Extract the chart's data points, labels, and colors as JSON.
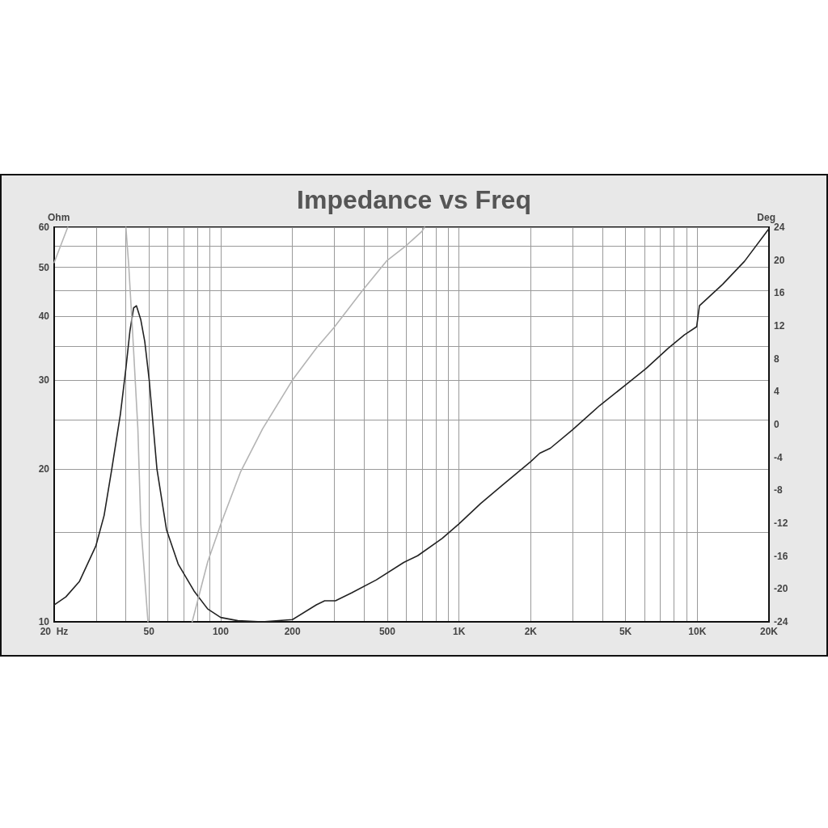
{
  "chart_data": {
    "type": "line",
    "title": "Impedance vs Freq",
    "ylabel": "Ohm",
    "y2label": "Deg",
    "log": "xy",
    "grid": true,
    "marker": "none",
    "line_style": "solid",
    "xlim": [
      20,
      20000
    ],
    "xticks": [
      {
        "value": 20,
        "label": "20  Hz"
      },
      {
        "value": 30,
        "label": null
      },
      {
        "value": 40,
        "label": null
      },
      50,
      {
        "value": 60,
        "label": null
      },
      {
        "value": 70,
        "label": null
      },
      {
        "value": 80,
        "label": null
      },
      {
        "value": 90,
        "label": null
      },
      100,
      200,
      {
        "value": 300,
        "label": null
      },
      {
        "value": 400,
        "label": null
      },
      500,
      {
        "value": 600,
        "label": null
      },
      {
        "value": 700,
        "label": null
      },
      {
        "value": 800,
        "label": null
      },
      {
        "value": 900,
        "label": null
      },
      {
        "value": 1000,
        "label": "1K"
      },
      {
        "value": 2000,
        "label": "2K"
      },
      {
        "value": 3000,
        "label": null
      },
      {
        "value": 4000,
        "label": null
      },
      {
        "value": 5000,
        "label": "5K"
      },
      {
        "value": 6000,
        "label": null
      },
      {
        "value": 7000,
        "label": null
      },
      {
        "value": 8000,
        "label": null
      },
      {
        "value": 9000,
        "label": null
      },
      {
        "value": 10000,
        "label": "10K"
      },
      {
        "value": 20000,
        "label": "20K"
      }
    ],
    "ylim": [
      10,
      60
    ],
    "yticks": [
      10,
      {
        "value": 15,
        "label": null
      },
      20,
      {
        "value": 25,
        "label": null
      },
      30,
      {
        "value": 35,
        "label": null
      },
      40,
      {
        "value": 45,
        "label": null
      },
      50,
      {
        "value": 55,
        "label": null
      },
      60
    ],
    "y2lim": [
      -24,
      24
    ],
    "y2ticks": [
      -24,
      -20,
      -16,
      -12,
      -8,
      -4,
      0,
      4,
      8,
      12,
      16,
      20,
      24
    ],
    "series": [
      {
        "color": "#222222",
        "x": [
          20,
          22.4,
          25.5,
          29.9,
          32.4,
          34.9,
          37.9,
          40,
          41.6,
          43.1,
          44.3,
          46.2,
          48,
          50.1,
          54,
          59.2,
          66.3,
          77.3,
          88.2,
          100,
          118,
          149,
          200,
          252,
          273,
          303,
          354,
          450,
          587,
          671,
          850,
          1000,
          1231,
          1523,
          2000,
          2183,
          2420,
          2993,
          3895,
          5000,
          6105,
          7540,
          8833,
          9947,
          10213,
          12780,
          15790,
          20000
        ],
        "values": [
          10.8,
          11.2,
          12,
          14.1,
          16.2,
          20,
          25.6,
          31.6,
          37.5,
          41.6,
          42,
          39.4,
          35.7,
          30,
          20,
          15.2,
          13,
          11.5,
          10.6,
          10.2,
          10.05,
          10,
          10.1,
          10.8,
          11,
          11,
          11.4,
          12.1,
          13.1,
          13.5,
          14.6,
          15.6,
          17.1,
          18.6,
          20.7,
          21.5,
          22,
          23.9,
          26.7,
          29.3,
          31.6,
          34.6,
          36.8,
          38.2,
          42,
          46.3,
          51.4,
          59.6
        ]
      },
      {
        "color": "#b4b4b4",
        "axis": "y2",
        "x": [
          20,
          22.8,
          31,
          40,
          41.1,
          42.7,
          44.9,
          46.2,
          49.5,
          62,
          75.9,
          88.2,
          101,
          121,
          150,
          200,
          252,
          299,
          396,
          497,
          597,
          699,
          717
        ],
        "values": [
          19.7,
          24,
          null,
          24,
          19.4,
          11.1,
          -0.5,
          -12.1,
          -24,
          null,
          -24,
          -16.7,
          -11.8,
          -5.8,
          -0.5,
          5.4,
          9.3,
          11.8,
          16.4,
          19.9,
          21.7,
          23.5,
          24
        ]
      }
    ]
  }
}
